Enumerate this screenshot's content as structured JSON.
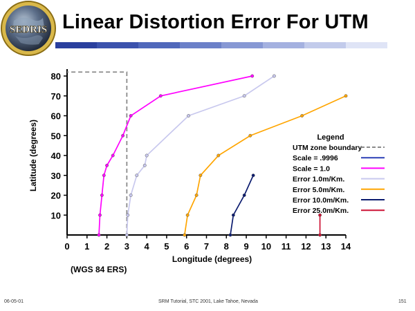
{
  "logo": {
    "text": "SEDRIS"
  },
  "title": "Linear Distortion Error For UTM",
  "title_bar_colors": [
    "#2a3f9e",
    "#3b52ad",
    "#5068bb",
    "#6b80c8",
    "#8798d4",
    "#a4b1e0",
    "#c2cbeb",
    "#dfe4f6"
  ],
  "datum_label": "(WGS 84 ERS)",
  "footer": {
    "left": "06-05-01",
    "center": "SRM Tutorial, STC 2001, Lake Tahoe, Nevada",
    "right": "151"
  },
  "chart_data": {
    "type": "line",
    "xlabel": "Longitude (degrees)",
    "ylabel": "Latitude (degrees)",
    "xlim": [
      0,
      14
    ],
    "ylim": [
      0,
      80
    ],
    "xticks": [
      "0",
      "1",
      "2",
      "3",
      "4",
      "5",
      "6",
      "7",
      "8",
      "9",
      "10",
      "11",
      "12",
      "13",
      "14"
    ],
    "yticks": [
      "10",
      "20",
      "30",
      "40",
      "50",
      "60",
      "70",
      "80"
    ],
    "legend_title": "Legend",
    "legend_position": "right",
    "series": [
      {
        "name": "UTM zone boundary",
        "color": "#8a8a8a",
        "dashed": true,
        "markers": false,
        "x": [
          3,
          3,
          0
        ],
        "y": [
          0,
          82,
          82
        ]
      },
      {
        "name": "Scale = .9996",
        "color": "#2b3fb5",
        "dashed": false,
        "markers": false,
        "x": [],
        "y": []
      },
      {
        "name": "Scale = 1.0",
        "color": "#ff00ff",
        "dashed": false,
        "markers": true,
        "x": [
          1.6,
          1.65,
          1.75,
          1.85,
          2.0,
          2.3,
          2.8,
          3.2,
          4.7,
          9.3
        ],
        "y": [
          0,
          10,
          20,
          30,
          35,
          40,
          50,
          60,
          70,
          80
        ]
      },
      {
        "name": "Error 1.0m/Km.",
        "color": "#c8c8ee",
        "dashed": false,
        "markers": true,
        "x": [
          3.0,
          3.05,
          3.2,
          3.5,
          3.9,
          4.0,
          6.1,
          8.9,
          10.4
        ],
        "y": [
          0,
          10,
          20,
          30,
          35,
          40,
          60,
          70,
          80
        ]
      },
      {
        "name": "Error 5.0m/Km.",
        "color": "#ffa500",
        "dashed": false,
        "markers": true,
        "x": [
          5.9,
          6.05,
          6.5,
          6.7,
          7.6,
          9.2,
          11.8,
          14.0
        ],
        "y": [
          0,
          10,
          20,
          30,
          40,
          50,
          60,
          70
        ]
      },
      {
        "name": "Error 10.0m/Km.",
        "color": "#0a1a6e",
        "dashed": false,
        "markers": true,
        "x": [
          8.2,
          8.35,
          8.9,
          9.35
        ],
        "y": [
          0,
          10,
          20,
          30
        ]
      },
      {
        "name": "Error 25.0m/Km.",
        "color": "#cc1133",
        "dashed": false,
        "markers": true,
        "x": [
          12.7,
          12.7
        ],
        "y": [
          0,
          10
        ]
      }
    ]
  }
}
